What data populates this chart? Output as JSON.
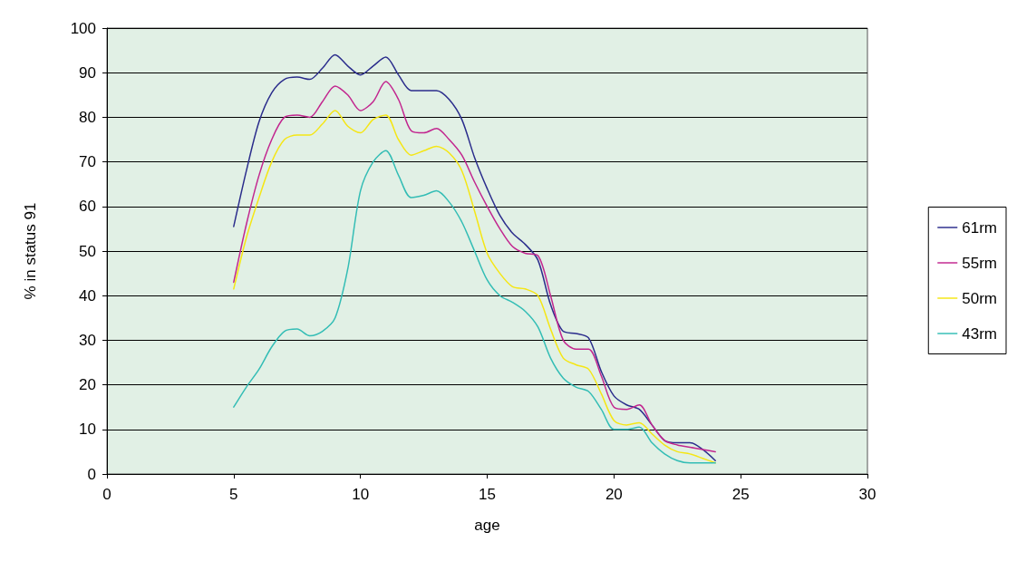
{
  "chart_data": {
    "type": "line",
    "xlabel": "age",
    "ylabel": "% in status 91",
    "xlim": [
      0,
      30
    ],
    "xticks": [
      0,
      5,
      10,
      15,
      20,
      25,
      30
    ],
    "ylim": [
      0,
      100
    ],
    "yticks": [
      0,
      10,
      20,
      30,
      40,
      50,
      60,
      70,
      80,
      90,
      100
    ],
    "grid": "y",
    "legend": "right",
    "marker": "none",
    "line_style": "solid",
    "x": [
      5,
      5.5,
      6,
      6.5,
      7,
      7.5,
      8,
      8.5,
      9,
      9.5,
      10,
      10.5,
      11,
      11.5,
      12,
      12.5,
      13,
      13.5,
      14,
      14.5,
      15,
      15.5,
      16,
      16.5,
      17,
      17.5,
      18,
      18.5,
      19,
      19.5,
      20,
      20.5,
      21,
      21.5,
      22,
      22.5,
      23,
      23.5,
      24
    ],
    "series": [
      {
        "name": "61rm",
        "color": "#2b2d8c",
        "values": [
          55.5,
          68,
          79,
          85.5,
          88.5,
          89,
          88.5,
          91,
          94,
          91.5,
          89.5,
          91.5,
          93.5,
          89.5,
          86,
          86,
          86,
          84,
          79.5,
          71,
          64,
          58,
          54,
          51.5,
          48,
          38,
          32,
          31.5,
          30.5,
          23,
          17.5,
          15.5,
          14.5,
          11,
          7.5,
          7,
          7,
          5.5,
          3
        ]
      },
      {
        "name": "55rm",
        "color": "#c2268f",
        "values": [
          43,
          56,
          67,
          75,
          80,
          80.5,
          80,
          83.5,
          87,
          85,
          81.5,
          83.5,
          88,
          84,
          77,
          76.5,
          77.5,
          75,
          71.5,
          65.5,
          60,
          55,
          51,
          49.5,
          49,
          40,
          30,
          28,
          28,
          22,
          15,
          14.5,
          15.5,
          11,
          7.5,
          6.5,
          6,
          5.5,
          5
        ]
      },
      {
        "name": "50rm",
        "color": "#f5e614",
        "values": [
          41.5,
          53,
          62,
          70,
          75,
          76,
          76,
          78.5,
          81.5,
          78,
          76.5,
          79.5,
          80.5,
          75,
          71.5,
          72.5,
          73.5,
          72,
          68,
          59,
          49.5,
          45,
          42,
          41.5,
          40,
          32.5,
          26,
          24.5,
          23.5,
          18,
          12,
          11,
          11.5,
          9,
          6.5,
          5,
          4.5,
          3.5,
          2.5
        ]
      },
      {
        "name": "43rm",
        "color": "#33bdb5",
        "values": [
          15,
          19.5,
          23.5,
          28.5,
          32,
          32.5,
          31,
          32,
          35,
          46,
          63.5,
          70,
          72.5,
          67,
          62,
          62.5,
          63.5,
          61,
          56.5,
          50,
          43.5,
          40,
          38.5,
          36.5,
          33,
          26,
          21.5,
          19.5,
          18.5,
          14.5,
          10,
          10,
          10.5,
          7,
          4.5,
          3,
          2.5,
          2.5,
          2.5
        ]
      }
    ]
  }
}
